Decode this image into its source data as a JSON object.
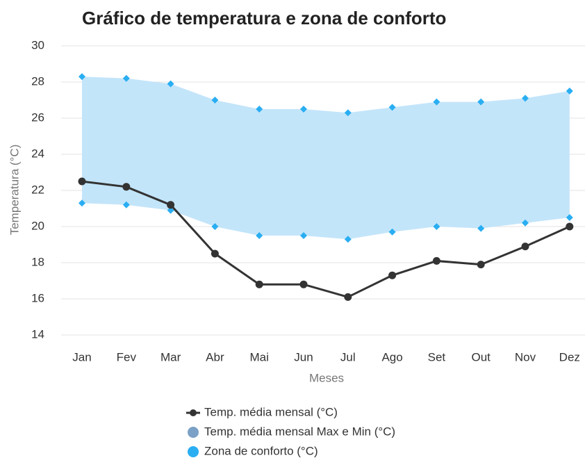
{
  "chart_data": {
    "type": "line",
    "title": "Gráfico de temperatura e zona de conforto",
    "x_label": "Meses",
    "y_label": "Temperatura (°C)",
    "categories": [
      "Jan",
      "Fev",
      "Mar",
      "Abr",
      "Mai",
      "Jun",
      "Jul",
      "Ago",
      "Set",
      "Out",
      "Nov",
      "Dez"
    ],
    "ylim": [
      14,
      30
    ],
    "yticks": [
      14,
      16,
      18,
      20,
      22,
      24,
      26,
      28,
      30
    ],
    "grid": true,
    "legend": "bottom",
    "series": [
      {
        "name": "Temp. média mensal (°C)",
        "color": "#333333",
        "type": "line",
        "values": [
          22.5,
          22.2,
          21.2,
          18.5,
          16.8,
          16.8,
          16.1,
          17.3,
          18.1,
          17.9,
          18.9,
          20.0
        ]
      },
      {
        "name": "Temp. média mensal Max e Min (°C)",
        "color": "#7ca1c6",
        "type": "range",
        "values": [
          null,
          null,
          null,
          null,
          null,
          null,
          null,
          null,
          null,
          null,
          null,
          null
        ]
      },
      {
        "name": "Zona de conforto (°C)",
        "color": "#2aaef2",
        "fill": "#c3e5fa",
        "type": "area_range",
        "low": [
          21.3,
          21.2,
          20.9,
          20.0,
          19.5,
          19.5,
          19.3,
          19.7,
          20.0,
          19.9,
          20.2,
          20.5
        ],
        "high": [
          28.3,
          28.2,
          27.9,
          27.0,
          26.5,
          26.5,
          26.3,
          26.6,
          26.9,
          26.9,
          27.1,
          27.5
        ]
      }
    ]
  }
}
